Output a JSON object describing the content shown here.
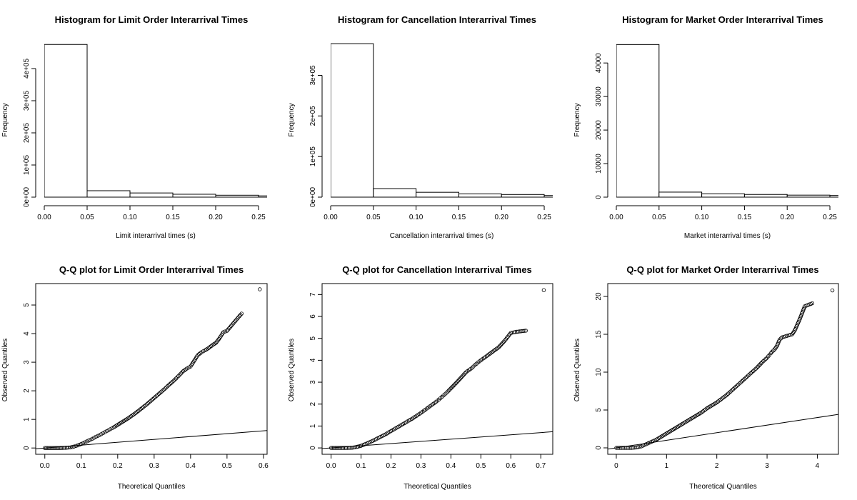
{
  "chart_data": [
    {
      "type": "bar",
      "title": "Histogram for Limit Order Interarrival Times",
      "xlabel": "Limit interarrival times (s)",
      "ylabel": "Frequency",
      "xlim": [
        0,
        0.26
      ],
      "ylim": [
        0,
        480000
      ],
      "xticks": [
        0,
        0.05,
        0.1,
        0.15,
        0.2,
        0.25
      ],
      "xtick_labels": [
        "0.00",
        "0.05",
        "0.10",
        "0.15",
        "0.20",
        "0.25"
      ],
      "yticks": [
        0,
        100000,
        200000,
        300000,
        400000
      ],
      "ytick_labels": [
        "0e+00",
        "1e+05",
        "2e+05",
        "3e+05",
        "4e+05"
      ],
      "bins": [
        {
          "x0": 0.0,
          "x1": 0.05,
          "value": 475000
        },
        {
          "x0": 0.05,
          "x1": 0.1,
          "value": 20000
        },
        {
          "x0": 0.1,
          "x1": 0.15,
          "value": 13000
        },
        {
          "x0": 0.15,
          "x1": 0.2,
          "value": 9000
        },
        {
          "x0": 0.2,
          "x1": 0.25,
          "value": 6000
        },
        {
          "x0": 0.25,
          "x1": 0.3,
          "value": 4000
        }
      ]
    },
    {
      "type": "bar",
      "title": "Histogram for Cancellation Interarrival Times",
      "xlabel": "Cancellation interarrival times (s)",
      "ylabel": "Frequency",
      "xlim": [
        0,
        0.26
      ],
      "ylim": [
        0,
        380000
      ],
      "xticks": [
        0,
        0.05,
        0.1,
        0.15,
        0.2,
        0.25
      ],
      "xtick_labels": [
        "0.00",
        "0.05",
        "0.10",
        "0.15",
        "0.20",
        "0.25"
      ],
      "yticks": [
        0,
        100000,
        200000,
        300000
      ],
      "ytick_labels": [
        "0e+00",
        "1e+05",
        "2e+05",
        "3e+05"
      ],
      "bins": [
        {
          "x0": 0.0,
          "x1": 0.05,
          "value": 378000
        },
        {
          "x0": 0.05,
          "x1": 0.1,
          "value": 21000
        },
        {
          "x0": 0.1,
          "x1": 0.15,
          "value": 12000
        },
        {
          "x0": 0.15,
          "x1": 0.2,
          "value": 8000
        },
        {
          "x0": 0.2,
          "x1": 0.25,
          "value": 6500
        },
        {
          "x0": 0.25,
          "x1": 0.3,
          "value": 4000
        }
      ]
    },
    {
      "type": "bar",
      "title": "Histogram for Market Order Interarrival Times",
      "xlabel": "Market interarrival times (s)",
      "ylabel": "Frequency",
      "xlim": [
        0,
        0.26
      ],
      "ylim": [
        0,
        46000
      ],
      "xticks": [
        0,
        0.05,
        0.1,
        0.15,
        0.2,
        0.25
      ],
      "xtick_labels": [
        "0.00",
        "0.05",
        "0.10",
        "0.15",
        "0.20",
        "0.25"
      ],
      "yticks": [
        0,
        10000,
        20000,
        30000,
        40000
      ],
      "ytick_labels": [
        "0",
        "10000",
        "20000",
        "30000",
        "40000"
      ],
      "bins": [
        {
          "x0": 0.0,
          "x1": 0.05,
          "value": 45500
        },
        {
          "x0": 0.05,
          "x1": 0.1,
          "value": 1500
        },
        {
          "x0": 0.1,
          "x1": 0.15,
          "value": 1000
        },
        {
          "x0": 0.15,
          "x1": 0.2,
          "value": 800
        },
        {
          "x0": 0.2,
          "x1": 0.25,
          "value": 600
        },
        {
          "x0": 0.25,
          "x1": 0.3,
          "value": 500
        }
      ]
    },
    {
      "type": "scatter",
      "title": "Q-Q plot for Limit Order Interarrival Times",
      "xlabel": "Theoretical Quantiles",
      "ylabel": "Observed Quantiles",
      "xlim": [
        -0.025,
        0.61
      ],
      "ylim": [
        -0.22,
        5.75
      ],
      "xticks": [
        0,
        0.1,
        0.2,
        0.3,
        0.4,
        0.5,
        0.6
      ],
      "xtick_labels": [
        "0.0",
        "0.1",
        "0.2",
        "0.3",
        "0.4",
        "0.5",
        "0.6"
      ],
      "yticks": [
        0,
        1,
        2,
        3,
        4,
        5
      ],
      "ytick_labels": [
        "0",
        "1",
        "2",
        "3",
        "4",
        "5"
      ],
      "points": [
        [
          0,
          0
        ],
        [
          0.02,
          0
        ],
        [
          0.04,
          0
        ],
        [
          0.06,
          0.01
        ],
        [
          0.07,
          0.02
        ],
        [
          0.08,
          0.05
        ],
        [
          0.09,
          0.09
        ],
        [
          0.1,
          0.14
        ],
        [
          0.11,
          0.2
        ],
        [
          0.12,
          0.26
        ],
        [
          0.13,
          0.32
        ],
        [
          0.14,
          0.39
        ],
        [
          0.15,
          0.45
        ],
        [
          0.16,
          0.52
        ],
        [
          0.17,
          0.59
        ],
        [
          0.18,
          0.66
        ],
        [
          0.19,
          0.73
        ],
        [
          0.2,
          0.81
        ],
        [
          0.21,
          0.89
        ],
        [
          0.22,
          0.97
        ],
        [
          0.23,
          1.05
        ],
        [
          0.24,
          1.14
        ],
        [
          0.25,
          1.23
        ],
        [
          0.26,
          1.33
        ],
        [
          0.27,
          1.43
        ],
        [
          0.28,
          1.53
        ],
        [
          0.29,
          1.64
        ],
        [
          0.3,
          1.75
        ],
        [
          0.31,
          1.86
        ],
        [
          0.32,
          1.97
        ],
        [
          0.33,
          2.08
        ],
        [
          0.34,
          2.2
        ],
        [
          0.35,
          2.31
        ],
        [
          0.36,
          2.43
        ],
        [
          0.37,
          2.56
        ],
        [
          0.38,
          2.69
        ],
        [
          0.39,
          2.78
        ],
        [
          0.4,
          2.85
        ],
        [
          0.41,
          3.05
        ],
        [
          0.42,
          3.25
        ],
        [
          0.43,
          3.35
        ],
        [
          0.44,
          3.42
        ],
        [
          0.45,
          3.5
        ],
        [
          0.46,
          3.6
        ],
        [
          0.47,
          3.68
        ],
        [
          0.48,
          3.85
        ],
        [
          0.49,
          4.05
        ],
        [
          0.5,
          4.1
        ],
        [
          0.52,
          4.4
        ],
        [
          0.54,
          4.7
        ],
        [
          0.59,
          5.55
        ]
      ],
      "reference_line": [
        [
          -0.025,
          -0.025
        ],
        [
          0.61,
          0.61
        ]
      ]
    },
    {
      "type": "scatter",
      "title": "Q-Q plot for Cancellation Interarrival Times",
      "xlabel": "Theoretical Quantiles",
      "ylabel": "Observed Quantiles",
      "xlim": [
        -0.03,
        0.74
      ],
      "ylim": [
        -0.29,
        7.5
      ],
      "xticks": [
        0,
        0.1,
        0.2,
        0.3,
        0.4,
        0.5,
        0.6,
        0.7
      ],
      "xtick_labels": [
        "0.0",
        "0.1",
        "0.2",
        "0.3",
        "0.4",
        "0.5",
        "0.6",
        "0.7"
      ],
      "yticks": [
        0,
        1,
        2,
        3,
        4,
        5,
        6,
        7
      ],
      "ytick_labels": [
        "0",
        "1",
        "2",
        "3",
        "4",
        "5",
        "6",
        "7"
      ],
      "points": [
        [
          0,
          0
        ],
        [
          0.02,
          0
        ],
        [
          0.05,
          0
        ],
        [
          0.07,
          0.01
        ],
        [
          0.08,
          0.03
        ],
        [
          0.09,
          0.06
        ],
        [
          0.1,
          0.1
        ],
        [
          0.11,
          0.15
        ],
        [
          0.12,
          0.21
        ],
        [
          0.13,
          0.27
        ],
        [
          0.14,
          0.33
        ],
        [
          0.15,
          0.4
        ],
        [
          0.16,
          0.47
        ],
        [
          0.17,
          0.54
        ],
        [
          0.18,
          0.61
        ],
        [
          0.19,
          0.69
        ],
        [
          0.2,
          0.77
        ],
        [
          0.21,
          0.85
        ],
        [
          0.22,
          0.93
        ],
        [
          0.23,
          1.01
        ],
        [
          0.24,
          1.09
        ],
        [
          0.25,
          1.17
        ],
        [
          0.26,
          1.25
        ],
        [
          0.27,
          1.33
        ],
        [
          0.28,
          1.42
        ],
        [
          0.29,
          1.51
        ],
        [
          0.3,
          1.6
        ],
        [
          0.31,
          1.7
        ],
        [
          0.32,
          1.8
        ],
        [
          0.33,
          1.9
        ],
        [
          0.34,
          2.0
        ],
        [
          0.35,
          2.1
        ],
        [
          0.36,
          2.21
        ],
        [
          0.37,
          2.33
        ],
        [
          0.38,
          2.45
        ],
        [
          0.39,
          2.58
        ],
        [
          0.4,
          2.72
        ],
        [
          0.41,
          2.86
        ],
        [
          0.42,
          3.0
        ],
        [
          0.43,
          3.15
        ],
        [
          0.44,
          3.3
        ],
        [
          0.45,
          3.45
        ],
        [
          0.46,
          3.55
        ],
        [
          0.47,
          3.65
        ],
        [
          0.48,
          3.78
        ],
        [
          0.49,
          3.9
        ],
        [
          0.5,
          4.0
        ],
        [
          0.51,
          4.1
        ],
        [
          0.52,
          4.2
        ],
        [
          0.54,
          4.4
        ],
        [
          0.56,
          4.6
        ],
        [
          0.58,
          4.9
        ],
        [
          0.6,
          5.25
        ],
        [
          0.62,
          5.3
        ],
        [
          0.65,
          5.35
        ],
        [
          0.71,
          7.2
        ]
      ],
      "reference_line": [
        [
          -0.03,
          -0.03
        ],
        [
          0.74,
          0.74
        ]
      ]
    },
    {
      "type": "scatter",
      "title": "Q-Q plot for Market Order Interarrival Times",
      "xlabel": "Theoretical Quantiles",
      "ylabel": "Observed Quantiles",
      "xlim": [
        -0.17,
        4.42
      ],
      "ylim": [
        -0.85,
        21.7
      ],
      "xticks": [
        0,
        1,
        2,
        3,
        4
      ],
      "xtick_labels": [
        "0",
        "1",
        "2",
        "3",
        "4"
      ],
      "yticks": [
        0,
        5,
        10,
        15,
        20
      ],
      "ytick_labels": [
        "0",
        "5",
        "10",
        "15",
        "20"
      ],
      "points": [
        [
          0,
          0
        ],
        [
          0.1,
          0
        ],
        [
          0.2,
          0
        ],
        [
          0.3,
          0
        ],
        [
          0.4,
          0.05
        ],
        [
          0.5,
          0.2
        ],
        [
          0.6,
          0.5
        ],
        [
          0.7,
          0.8
        ],
        [
          0.8,
          1.1
        ],
        [
          0.9,
          1.5
        ],
        [
          1.0,
          1.9
        ],
        [
          1.1,
          2.3
        ],
        [
          1.2,
          2.7
        ],
        [
          1.3,
          3.1
        ],
        [
          1.4,
          3.5
        ],
        [
          1.5,
          3.9
        ],
        [
          1.6,
          4.3
        ],
        [
          1.7,
          4.7
        ],
        [
          1.8,
          5.2
        ],
        [
          1.9,
          5.6
        ],
        [
          2.0,
          6.0
        ],
        [
          2.1,
          6.5
        ],
        [
          2.2,
          7.0
        ],
        [
          2.3,
          7.6
        ],
        [
          2.4,
          8.2
        ],
        [
          2.5,
          8.8
        ],
        [
          2.6,
          9.4
        ],
        [
          2.7,
          10.0
        ],
        [
          2.8,
          10.6
        ],
        [
          2.9,
          11.3
        ],
        [
          3.0,
          11.9
        ],
        [
          3.05,
          12.3
        ],
        [
          3.1,
          12.7
        ],
        [
          3.15,
          13.0
        ],
        [
          3.2,
          13.5
        ],
        [
          3.25,
          14.3
        ],
        [
          3.3,
          14.6
        ],
        [
          3.4,
          14.8
        ],
        [
          3.5,
          15.0
        ],
        [
          3.55,
          15.5
        ],
        [
          3.65,
          17.0
        ],
        [
          3.75,
          18.7
        ],
        [
          3.9,
          19.1
        ],
        [
          4.3,
          20.8
        ]
      ],
      "reference_line": [
        [
          -0.17,
          -0.17
        ],
        [
          4.42,
          4.42
        ]
      ]
    }
  ]
}
